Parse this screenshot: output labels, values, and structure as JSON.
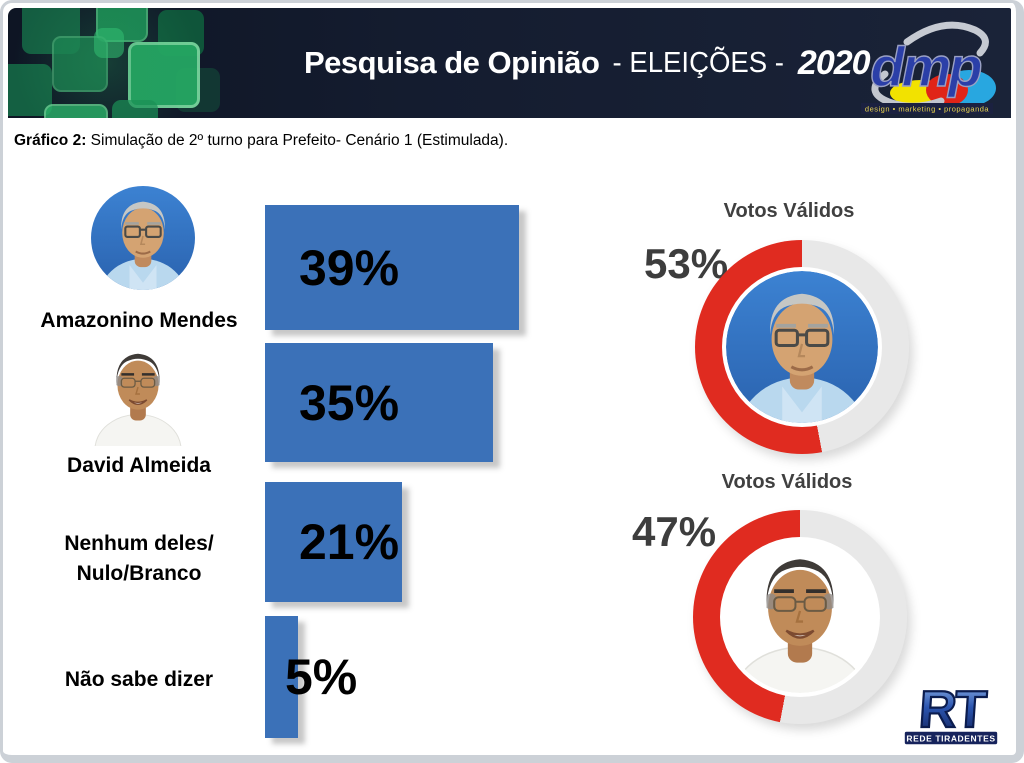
{
  "header": {
    "title_main": "Pesquisa de Opinião",
    "title_separator": "- ELEIÇÕES -",
    "title_year": "2020",
    "dmp_logo_text": "dmp",
    "dmp_tagline": "design • marketing • propaganda"
  },
  "subtitle": {
    "prefix": "Gráfico 2:",
    "text": " Simulação de 2º turno para Prefeito- Cenário 1 (Estimulada)."
  },
  "rows": [
    {
      "name_lines": [
        "Amazonino Mendes"
      ],
      "pct": "39%"
    },
    {
      "name_lines": [
        "David Almeida"
      ],
      "pct": "35%"
    },
    {
      "name_lines": [
        "Nenhum deles/",
        "Nulo/Branco"
      ],
      "pct": "21%"
    },
    {
      "name_lines": [
        "Não sabe dizer"
      ],
      "pct": "5%"
    }
  ],
  "chart_data": [
    {
      "type": "bar",
      "orientation": "horizontal",
      "unit": "%",
      "title": "Simulação de 2º turno para Prefeito - Cenário 1 (Estimulada)",
      "categories": [
        "Amazonino Mendes",
        "David Almeida",
        "Nenhum deles/Nulo/Branco",
        "Não sabe dizer"
      ],
      "values": [
        39,
        35,
        21,
        5
      ],
      "value_labels": [
        "39%",
        "35%",
        "21%",
        "5%"
      ],
      "bar_color": "#3b71b8",
      "value_label_color": "#000000",
      "xlim": [
        0,
        40
      ],
      "grid": false
    },
    {
      "type": "pie",
      "subtype": "donut",
      "title": "Votos Válidos",
      "candidate": "Amazonino Mendes",
      "value": 53,
      "label": "53%",
      "ring_color": "#e02b20",
      "track_color": "#e8e8e8",
      "direction": "counterclockwise",
      "start_angle_deg": 0
    },
    {
      "type": "pie",
      "subtype": "donut",
      "title": "Votos Válidos",
      "candidate": "David Almeida",
      "value": 47,
      "label": "47%",
      "ring_color": "#e02b20",
      "track_color": "#e8e8e8",
      "direction": "counterclockwise",
      "start_angle_deg": 0
    }
  ],
  "footer": {
    "rt_logo_text": "RT",
    "rt_logo_caption": "REDE TIRADENTES"
  }
}
